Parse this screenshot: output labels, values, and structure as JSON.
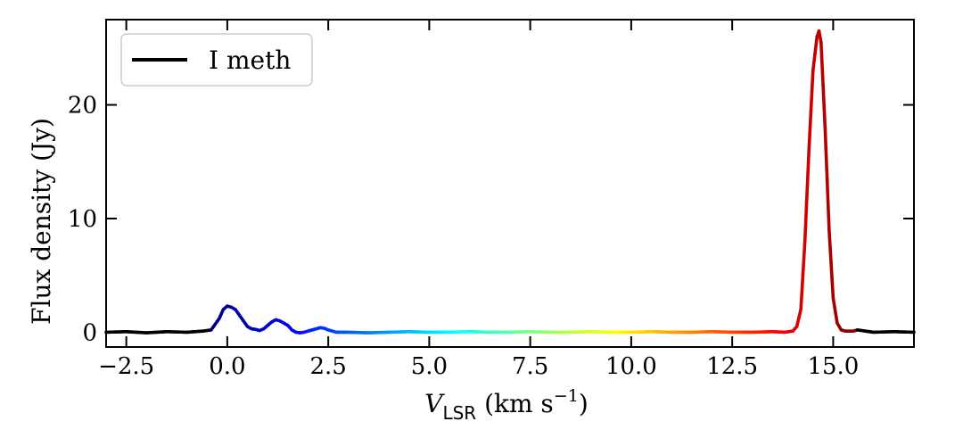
{
  "chart_data": {
    "type": "line",
    "title": "",
    "xlabel": {
      "symbol": "V",
      "subscript": "LSR",
      "unit_prefix": " (km s",
      "unit_exponent": "−1",
      "unit_suffix": ")"
    },
    "ylabel": "Flux density (Jy)",
    "xlim": [
      -3.0,
      17.0
    ],
    "ylim": [
      -1.3,
      27.5
    ],
    "x_ticks": [
      -2.5,
      0.0,
      2.5,
      5.0,
      7.5,
      10.0,
      12.5,
      15.0
    ],
    "x_tick_labels": [
      "−2.5",
      "0.0",
      "2.5",
      "5.0",
      "7.5",
      "10.0",
      "12.5",
      "15.0"
    ],
    "y_ticks": [
      0,
      10,
      20
    ],
    "y_tick_labels": [
      "0",
      "10",
      "20"
    ],
    "grid": false,
    "legend": {
      "placement": "top-left",
      "entries": [
        {
          "label": "I meth",
          "color": "#000000"
        }
      ]
    },
    "colormap": "jet",
    "color_range": [
      -0.4,
      15.6
    ],
    "series": [
      {
        "name": "I meth",
        "x": [
          -3.0,
          -2.5,
          -2.0,
          -1.5,
          -1.0,
          -0.6,
          -0.4,
          -0.2,
          -0.1,
          0.0,
          0.1,
          0.2,
          0.3,
          0.4,
          0.5,
          0.6,
          0.7,
          0.8,
          0.9,
          1.0,
          1.1,
          1.2,
          1.3,
          1.4,
          1.5,
          1.6,
          1.7,
          1.8,
          1.9,
          2.0,
          2.2,
          2.3,
          2.4,
          2.5,
          2.7,
          3.0,
          3.5,
          4.0,
          4.5,
          5.0,
          5.5,
          6.0,
          6.5,
          7.0,
          7.5,
          8.0,
          8.5,
          9.0,
          9.5,
          10.0,
          10.5,
          11.0,
          11.5,
          12.0,
          12.5,
          13.0,
          13.5,
          13.8,
          14.0,
          14.1,
          14.2,
          14.3,
          14.4,
          14.5,
          14.6,
          14.65,
          14.7,
          14.8,
          14.9,
          15.0,
          15.1,
          15.2,
          15.3,
          15.5,
          15.6,
          15.8,
          16.0,
          16.5,
          17.0
        ],
        "y": [
          0.0,
          0.05,
          -0.05,
          0.05,
          0.0,
          0.1,
          0.2,
          1.2,
          2.0,
          2.3,
          2.2,
          2.0,
          1.5,
          1.0,
          0.5,
          0.3,
          0.25,
          0.15,
          0.3,
          0.6,
          0.9,
          1.1,
          1.0,
          0.8,
          0.6,
          0.2,
          0.0,
          -0.05,
          0.0,
          0.1,
          0.3,
          0.4,
          0.35,
          0.2,
          0.0,
          0.0,
          -0.05,
          0.0,
          0.05,
          0.0,
          0.0,
          0.05,
          0.0,
          0.0,
          0.05,
          0.0,
          0.0,
          0.05,
          0.0,
          0.0,
          0.05,
          0.0,
          0.0,
          0.05,
          0.0,
          0.0,
          0.05,
          0.0,
          0.1,
          0.5,
          2.0,
          8.0,
          16.0,
          23.0,
          26.0,
          26.5,
          25.5,
          18.0,
          9.0,
          3.0,
          0.8,
          0.2,
          0.1,
          0.1,
          0.2,
          0.1,
          0.0,
          0.05,
          0.0
        ]
      }
    ]
  }
}
